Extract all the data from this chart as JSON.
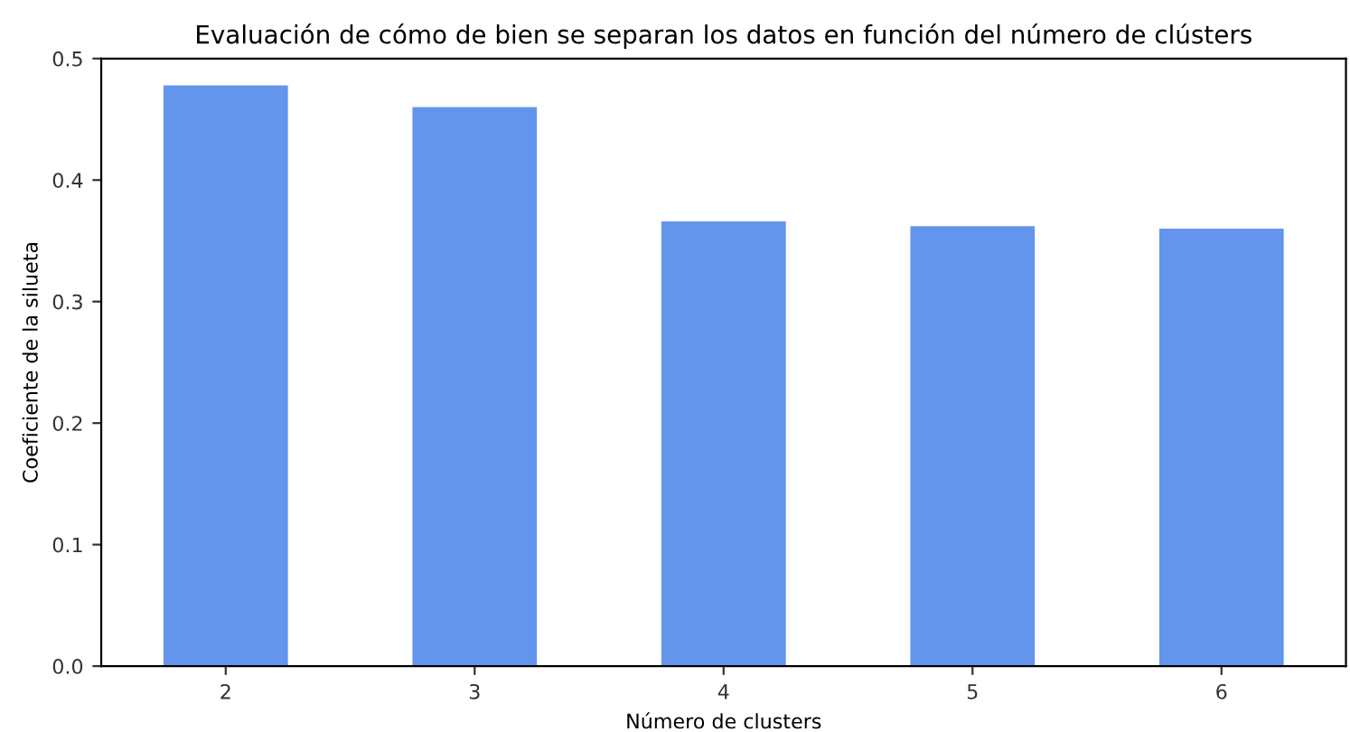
{
  "chart_data": {
    "type": "bar",
    "title": "Evaluación de cómo de bien se separan los datos en función del número de clústers",
    "xlabel": "Número de clusters",
    "ylabel": "Coeficiente de la silueta",
    "categories": [
      "2",
      "3",
      "4",
      "5",
      "6"
    ],
    "values": [
      0.478,
      0.46,
      0.366,
      0.362,
      0.36
    ],
    "color": "#6495ed",
    "ylim": [
      0,
      0.5
    ],
    "yticks": [
      {
        "value": 0,
        "label": "0.0"
      },
      0.1,
      0.2,
      0.3,
      0.4,
      0.5
    ],
    "grid": false,
    "legend": false
  }
}
